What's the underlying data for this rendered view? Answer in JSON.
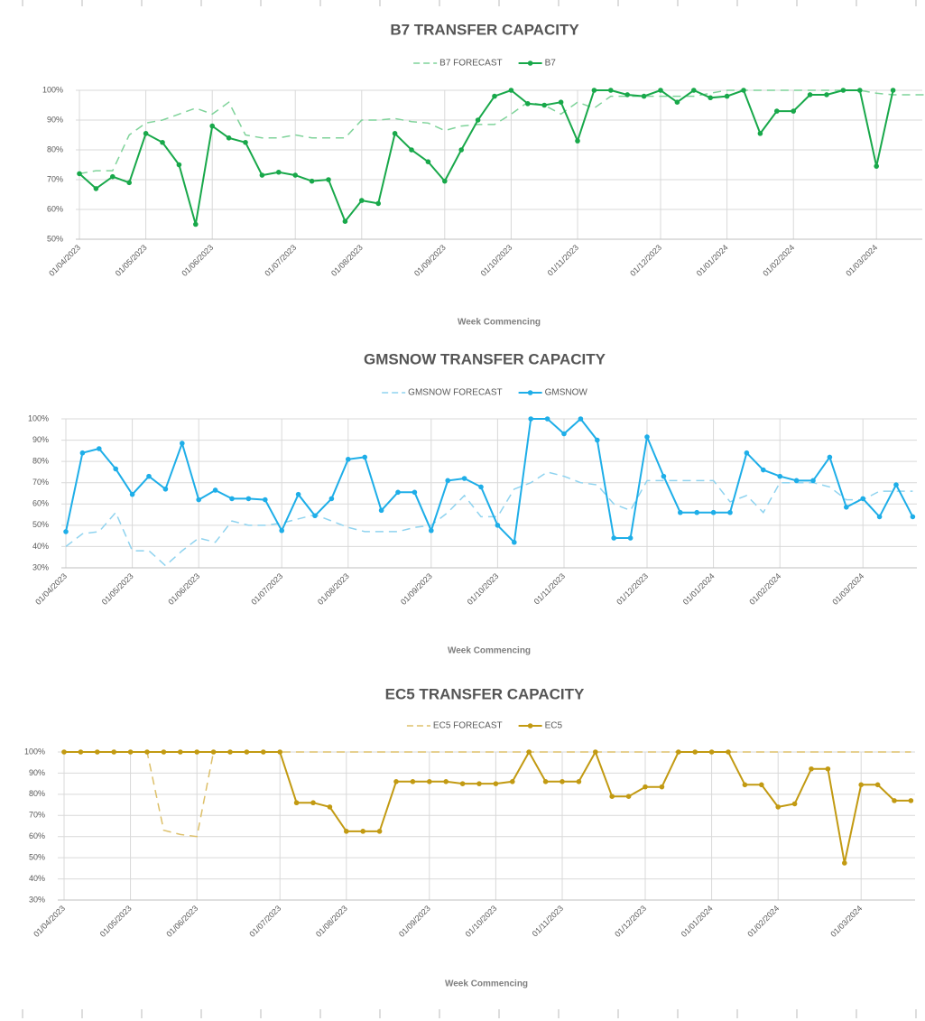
{
  "chart_data": [
    {
      "type": "line",
      "title": "B7 TRANSFER CAPACITY",
      "xlabel": "Week Commencing",
      "categories": [
        "01/04/2023",
        null,
        null,
        null,
        "01/05/2023",
        null,
        null,
        null,
        "01/06/2023",
        null,
        null,
        null,
        null,
        "01/07/2023",
        null,
        null,
        null,
        "01/08/2023",
        null,
        null,
        null,
        null,
        "01/09/2023",
        null,
        null,
        null,
        "01/10/2023",
        null,
        null,
        null,
        "01/11/2023",
        null,
        null,
        null,
        null,
        "01/12/2023",
        null,
        null,
        null,
        "01/01/2024",
        null,
        null,
        null,
        "01/02/2024",
        null,
        null,
        null,
        null,
        "01/03/2024",
        null,
        null,
        null
      ],
      "series": [
        {
          "name": "B7 FORECAST",
          "color": "#7fd39a",
          "line_style": "dashed",
          "markers": false,
          "values": [
            72,
            73,
            73,
            85,
            89,
            90,
            92,
            94,
            92,
            96,
            85,
            84,
            84,
            85,
            84,
            84,
            84,
            90,
            90,
            90.5,
            89.5,
            89,
            86.5,
            88,
            88.5,
            88.5,
            92,
            96,
            95,
            92,
            96,
            94,
            98,
            98,
            98,
            98,
            98,
            98,
            99,
            100,
            100,
            100,
            100,
            100,
            100,
            100,
            100,
            100,
            99,
            98.5,
            98.5,
            98.5
          ]
        },
        {
          "name": "B7",
          "color": "#18a84a",
          "line_style": "solid",
          "markers": true,
          "values": [
            72,
            67,
            71,
            69,
            85.5,
            82.5,
            75,
            55,
            88,
            84,
            82.5,
            71.5,
            72.5,
            71.5,
            69.5,
            70,
            56,
            63,
            62,
            85.5,
            80,
            76,
            69.5,
            80,
            90,
            98,
            100,
            95.5,
            95,
            96,
            83,
            100,
            100,
            98.5,
            98,
            100,
            96,
            100,
            97.5,
            98,
            100,
            85.5,
            93,
            93,
            98.5,
            98.5,
            100,
            100,
            74.5,
            100,
            null,
            null
          ]
        }
      ],
      "ylim": [
        50,
        100
      ],
      "yticks": [
        {
          "value": 50,
          "label": "50%"
        },
        {
          "value": 60,
          "label": "60%"
        },
        {
          "value": 70,
          "label": "70%"
        },
        {
          "value": 80,
          "label": "80%"
        },
        {
          "value": 90,
          "label": "90%"
        },
        {
          "value": 100,
          "label": "100%"
        }
      ],
      "grid": true,
      "legend": "top"
    },
    {
      "type": "line",
      "title": "GMSNOW TRANSFER CAPACITY",
      "xlabel": "Week Commencing",
      "categories": [
        "01/04/2023",
        null,
        null,
        null,
        "01/05/2023",
        null,
        null,
        null,
        "01/06/2023",
        null,
        null,
        null,
        null,
        "01/07/2023",
        null,
        null,
        null,
        "01/08/2023",
        null,
        null,
        null,
        null,
        "01/09/2023",
        null,
        null,
        null,
        "01/10/2023",
        null,
        null,
        null,
        "01/11/2023",
        null,
        null,
        null,
        null,
        "01/12/2023",
        null,
        null,
        null,
        "01/01/2024",
        null,
        null,
        null,
        "01/02/2024",
        null,
        null,
        null,
        null,
        "01/03/2024",
        null,
        null,
        null
      ],
      "series": [
        {
          "name": "GMSNOW FORECAST",
          "color": "#8fd3ef",
          "line_style": "dashed",
          "markers": false,
          "values": [
            40,
            46,
            47,
            56,
            38,
            38,
            31,
            38,
            44,
            42,
            52,
            50,
            50,
            51,
            53,
            55,
            52,
            49,
            47,
            47,
            47,
            49,
            50,
            56,
            64,
            54,
            54,
            67,
            70,
            75,
            73,
            70,
            69,
            60,
            57,
            71,
            71,
            71,
            71,
            71,
            61,
            64,
            56,
            70,
            70,
            70,
            68,
            62,
            62,
            66,
            66,
            66
          ]
        },
        {
          "name": "GMSNOW",
          "color": "#1eaee8",
          "line_style": "solid",
          "markers": true,
          "values": [
            47,
            84,
            86,
            76.5,
            64.5,
            73,
            67,
            88.5,
            62,
            66.5,
            62.5,
            62.5,
            62,
            47.5,
            64.5,
            54.5,
            62.5,
            81,
            82,
            57,
            65.5,
            65.5,
            47.5,
            71,
            72,
            68,
            50,
            42,
            100,
            100,
            93,
            100,
            90,
            44,
            44,
            91.5,
            73,
            56,
            56,
            56,
            56,
            84,
            76,
            73,
            71,
            71,
            82,
            58.5,
            62.5,
            54,
            69,
            54
          ]
        }
      ],
      "ylim": [
        30,
        100
      ],
      "yticks": [
        {
          "value": 30,
          "label": "30%"
        },
        {
          "value": 40,
          "label": "40%"
        },
        {
          "value": 50,
          "label": "50%"
        },
        {
          "value": 60,
          "label": "60%"
        },
        {
          "value": 70,
          "label": "70%"
        },
        {
          "value": 80,
          "label": "80%"
        },
        {
          "value": 90,
          "label": "90%"
        },
        {
          "value": 100,
          "label": "100%"
        }
      ],
      "grid": true,
      "legend": "top"
    },
    {
      "type": "line",
      "title": "EC5 TRANSFER CAPACITY",
      "xlabel": "Week Commencing",
      "categories": [
        "01/04/2023",
        null,
        null,
        null,
        "01/05/2023",
        null,
        null,
        null,
        "01/06/2023",
        null,
        null,
        null,
        null,
        "01/07/2023",
        null,
        null,
        null,
        "01/08/2023",
        null,
        null,
        null,
        null,
        "01/09/2023",
        null,
        null,
        null,
        "01/10/2023",
        null,
        null,
        null,
        "01/11/2023",
        null,
        null,
        null,
        null,
        "01/12/2023",
        null,
        null,
        null,
        "01/01/2024",
        null,
        null,
        null,
        "01/02/2024",
        null,
        null,
        null,
        null,
        "01/03/2024",
        null,
        null,
        null
      ],
      "series": [
        {
          "name": "EC5 FORECAST",
          "color": "#ddc06a",
          "line_style": "dashed",
          "markers": false,
          "values": [
            100,
            100,
            100,
            100,
            100,
            100,
            63,
            61,
            60,
            100,
            100,
            100,
            100,
            100,
            100,
            100,
            100,
            100,
            100,
            100,
            100,
            100,
            100,
            100,
            100,
            100,
            100,
            100,
            100,
            100,
            100,
            100,
            100,
            100,
            100,
            100,
            100,
            100,
            100,
            100,
            100,
            100,
            100,
            100,
            100,
            100,
            100,
            100,
            100,
            100,
            100,
            100
          ]
        },
        {
          "name": "EC5",
          "color": "#c29a12",
          "line_style": "solid",
          "markers": true,
          "values": [
            100,
            100,
            100,
            100,
            100,
            100,
            100,
            100,
            100,
            100,
            100,
            100,
            100,
            100,
            76,
            76,
            74,
            62.5,
            62.5,
            62.5,
            86,
            86,
            86,
            86,
            85,
            85,
            85,
            86,
            100,
            86,
            86,
            86,
            100,
            79,
            79,
            83.5,
            83.5,
            100,
            100,
            100,
            100,
            84.5,
            84.5,
            74,
            75.5,
            92,
            92,
            47.5,
            84.5,
            84.5,
            77,
            77
          ]
        }
      ],
      "ylim": [
        30,
        100
      ],
      "yticks": [
        {
          "value": 30,
          "label": "30%"
        },
        {
          "value": 40,
          "label": "40%"
        },
        {
          "value": 50,
          "label": "50%"
        },
        {
          "value": 60,
          "label": "60%"
        },
        {
          "value": 70,
          "label": "70%"
        },
        {
          "value": 80,
          "label": "80%"
        },
        {
          "value": 90,
          "label": "90%"
        },
        {
          "value": 100,
          "label": "100%"
        }
      ],
      "grid": true,
      "legend": "top"
    }
  ]
}
